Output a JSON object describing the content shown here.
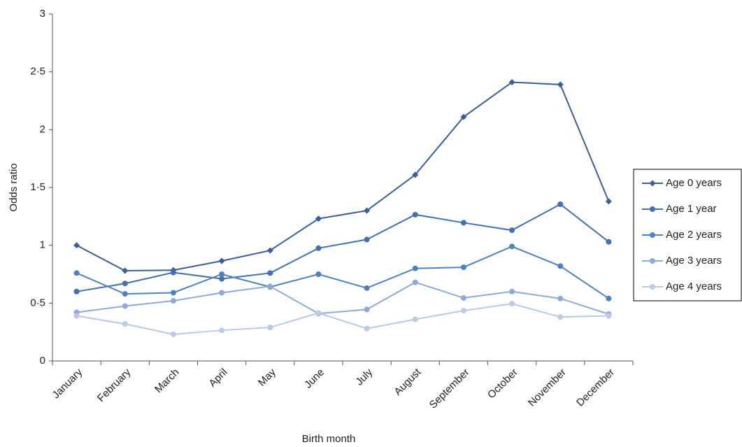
{
  "chart_data": {
    "type": "line",
    "x_label": "Birth month",
    "y_label": "Odds ratio",
    "categories": [
      "January",
      "February",
      "March",
      "April",
      "May",
      "June",
      "July",
      "August",
      "September",
      "October",
      "November",
      "December"
    ],
    "series": [
      {
        "name": "Age 0 years",
        "color": "#3b5f94",
        "marker": "diamond",
        "values": [
          1.0,
          0.78,
          0.785,
          0.865,
          0.955,
          1.23,
          1.3,
          1.61,
          2.11,
          2.41,
          2.39,
          1.38
        ]
      },
      {
        "name": "Age 1 year",
        "color": "#4470b0",
        "marker": "circle",
        "values": [
          0.6,
          0.67,
          0.765,
          0.71,
          0.76,
          0.975,
          1.05,
          1.265,
          1.195,
          1.13,
          1.355,
          1.03
        ]
      },
      {
        "name": "Age 2 years",
        "color": "#4f81bd",
        "marker": "circle",
        "values": [
          0.76,
          0.58,
          0.59,
          0.75,
          0.64,
          0.75,
          0.63,
          0.8,
          0.81,
          0.99,
          0.82,
          0.54
        ]
      },
      {
        "name": "Age 3 years",
        "color": "#8fa9d6",
        "marker": "circle",
        "values": [
          0.42,
          0.475,
          0.52,
          0.59,
          0.645,
          0.41,
          0.445,
          0.68,
          0.545,
          0.6,
          0.54,
          0.405
        ]
      },
      {
        "name": "Age 4 years",
        "color": "#b9c9e6",
        "marker": "circle",
        "values": [
          0.39,
          0.32,
          0.23,
          0.265,
          0.29,
          0.415,
          0.28,
          0.36,
          0.435,
          0.495,
          0.38,
          0.39
        ]
      }
    ],
    "ylim": [
      0,
      3
    ],
    "yticks": [
      0,
      {
        "value": 0.5,
        "label": "0·5"
      },
      1,
      {
        "value": 1.5,
        "label": "1·5"
      },
      2,
      {
        "value": 2.5,
        "label": "2·5"
      },
      3
    ],
    "grid": false,
    "legend": "right"
  }
}
